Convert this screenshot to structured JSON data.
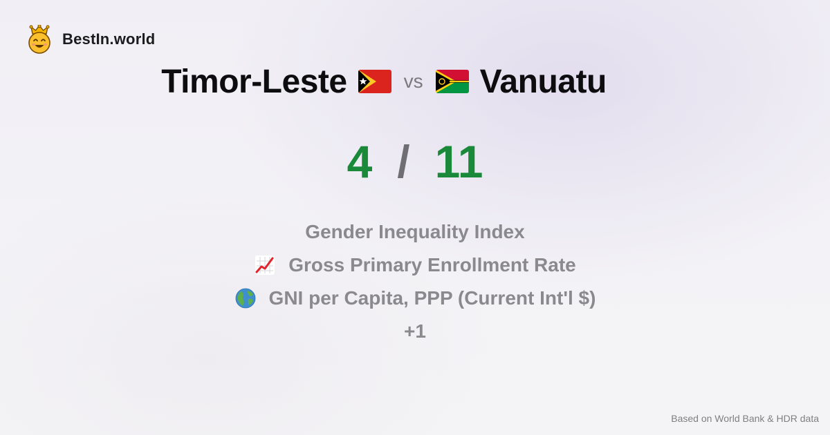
{
  "brand": {
    "name": "BestIn.world",
    "logo_icon": "crowned-smiley-icon"
  },
  "comparison": {
    "left": {
      "name": "Timor-Leste",
      "flag_icon": "timor-leste-flag-icon"
    },
    "separator": "vs",
    "right": {
      "name": "Vanuatu",
      "flag_icon": "vanuatu-flag-icon"
    }
  },
  "score": {
    "left": "4",
    "separator": "/",
    "right": "11",
    "color": "#1a8a3a"
  },
  "metrics": [
    {
      "icon": "",
      "label": "Gender Inequality Index"
    },
    {
      "icon": "chart-increasing-icon",
      "label": "Gross Primary Enrollment Rate"
    },
    {
      "icon": "globe-icon",
      "label": "GNI per Capita, PPP (Current Int'l $)"
    },
    {
      "icon": "",
      "label": "+1"
    }
  ],
  "footer": {
    "source": "Based on World Bank & HDR data"
  }
}
